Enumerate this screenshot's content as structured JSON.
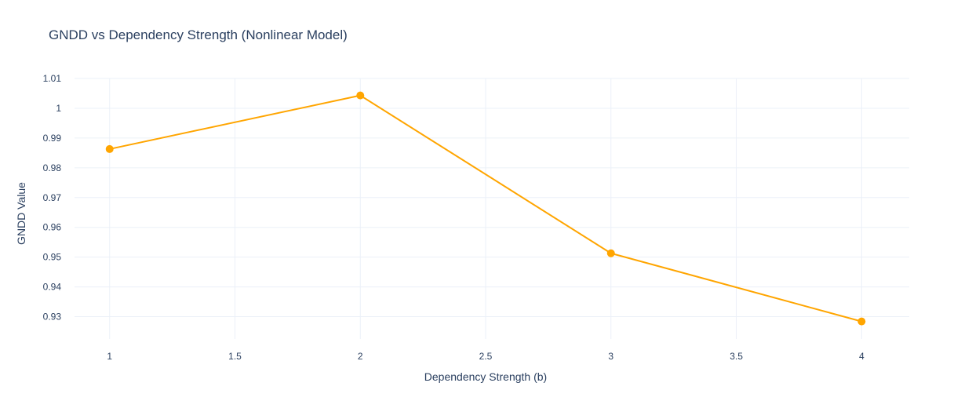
{
  "chart_data": {
    "type": "line",
    "title": "GNDD vs Dependency Strength (Nonlinear Model)",
    "xlabel": "Dependency Strength (b)",
    "ylabel": "GNDD Value",
    "x": [
      1,
      2,
      3,
      4
    ],
    "series": [
      {
        "values": [
          0.9863,
          1.0043,
          0.9513,
          0.9284
        ],
        "color": "#FFA500",
        "mode": "lines+markers"
      }
    ],
    "xlim": [
      0.86,
      4.19
    ],
    "ylim": [
      0.9225,
      1.01
    ],
    "xticks": [
      1,
      1.5,
      2,
      2.5,
      3,
      3.5,
      4
    ],
    "xtick_labels": [
      "1",
      "1.5",
      "2",
      "2.5",
      "3",
      "3.5",
      "4"
    ],
    "yticks": [
      0.93,
      0.94,
      0.95,
      0.96,
      0.97,
      0.98,
      0.99,
      1,
      1.01
    ],
    "ytick_labels": [
      "0.93",
      "0.94",
      "0.95",
      "0.96",
      "0.97",
      "0.98",
      "0.99",
      "1",
      "1.01"
    ],
    "grid": true,
    "legend": "none"
  }
}
